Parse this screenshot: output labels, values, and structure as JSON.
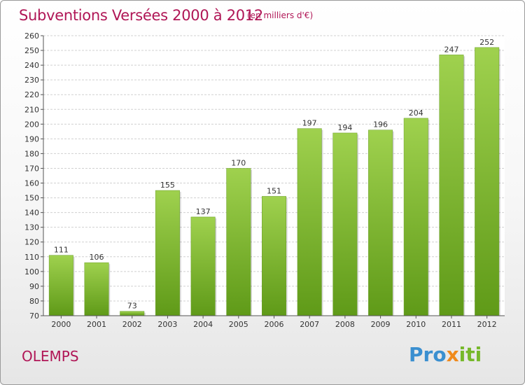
{
  "header": {
    "title": "Subventions Versées 2000 à 2012",
    "subtitle": "(en milliers d'€)"
  },
  "footer": {
    "commune": "OLEMPS",
    "logo": "Proxiti"
  },
  "colors": {
    "accent": "#b01656",
    "bar_top": "#9fd14e",
    "bar_bottom": "#5f9a18",
    "grid": "#d0d0d0"
  },
  "chart_data": {
    "type": "bar",
    "title": "Subventions Versées 2000 à 2012",
    "subtitle": "(en milliers d'€)",
    "categories": [
      "2000",
      "2001",
      "2002",
      "2003",
      "2004",
      "2005",
      "2006",
      "2007",
      "2008",
      "2009",
      "2010",
      "2011",
      "2012"
    ],
    "values": [
      111,
      106,
      73,
      155,
      137,
      170,
      151,
      197,
      194,
      196,
      204,
      247,
      252
    ],
    "ylim": [
      70,
      260
    ],
    "yticks": [
      70,
      80,
      90,
      100,
      110,
      120,
      130,
      140,
      150,
      160,
      170,
      180,
      190,
      200,
      210,
      220,
      230,
      240,
      250,
      260
    ],
    "grid": true,
    "data_labels": true
  }
}
